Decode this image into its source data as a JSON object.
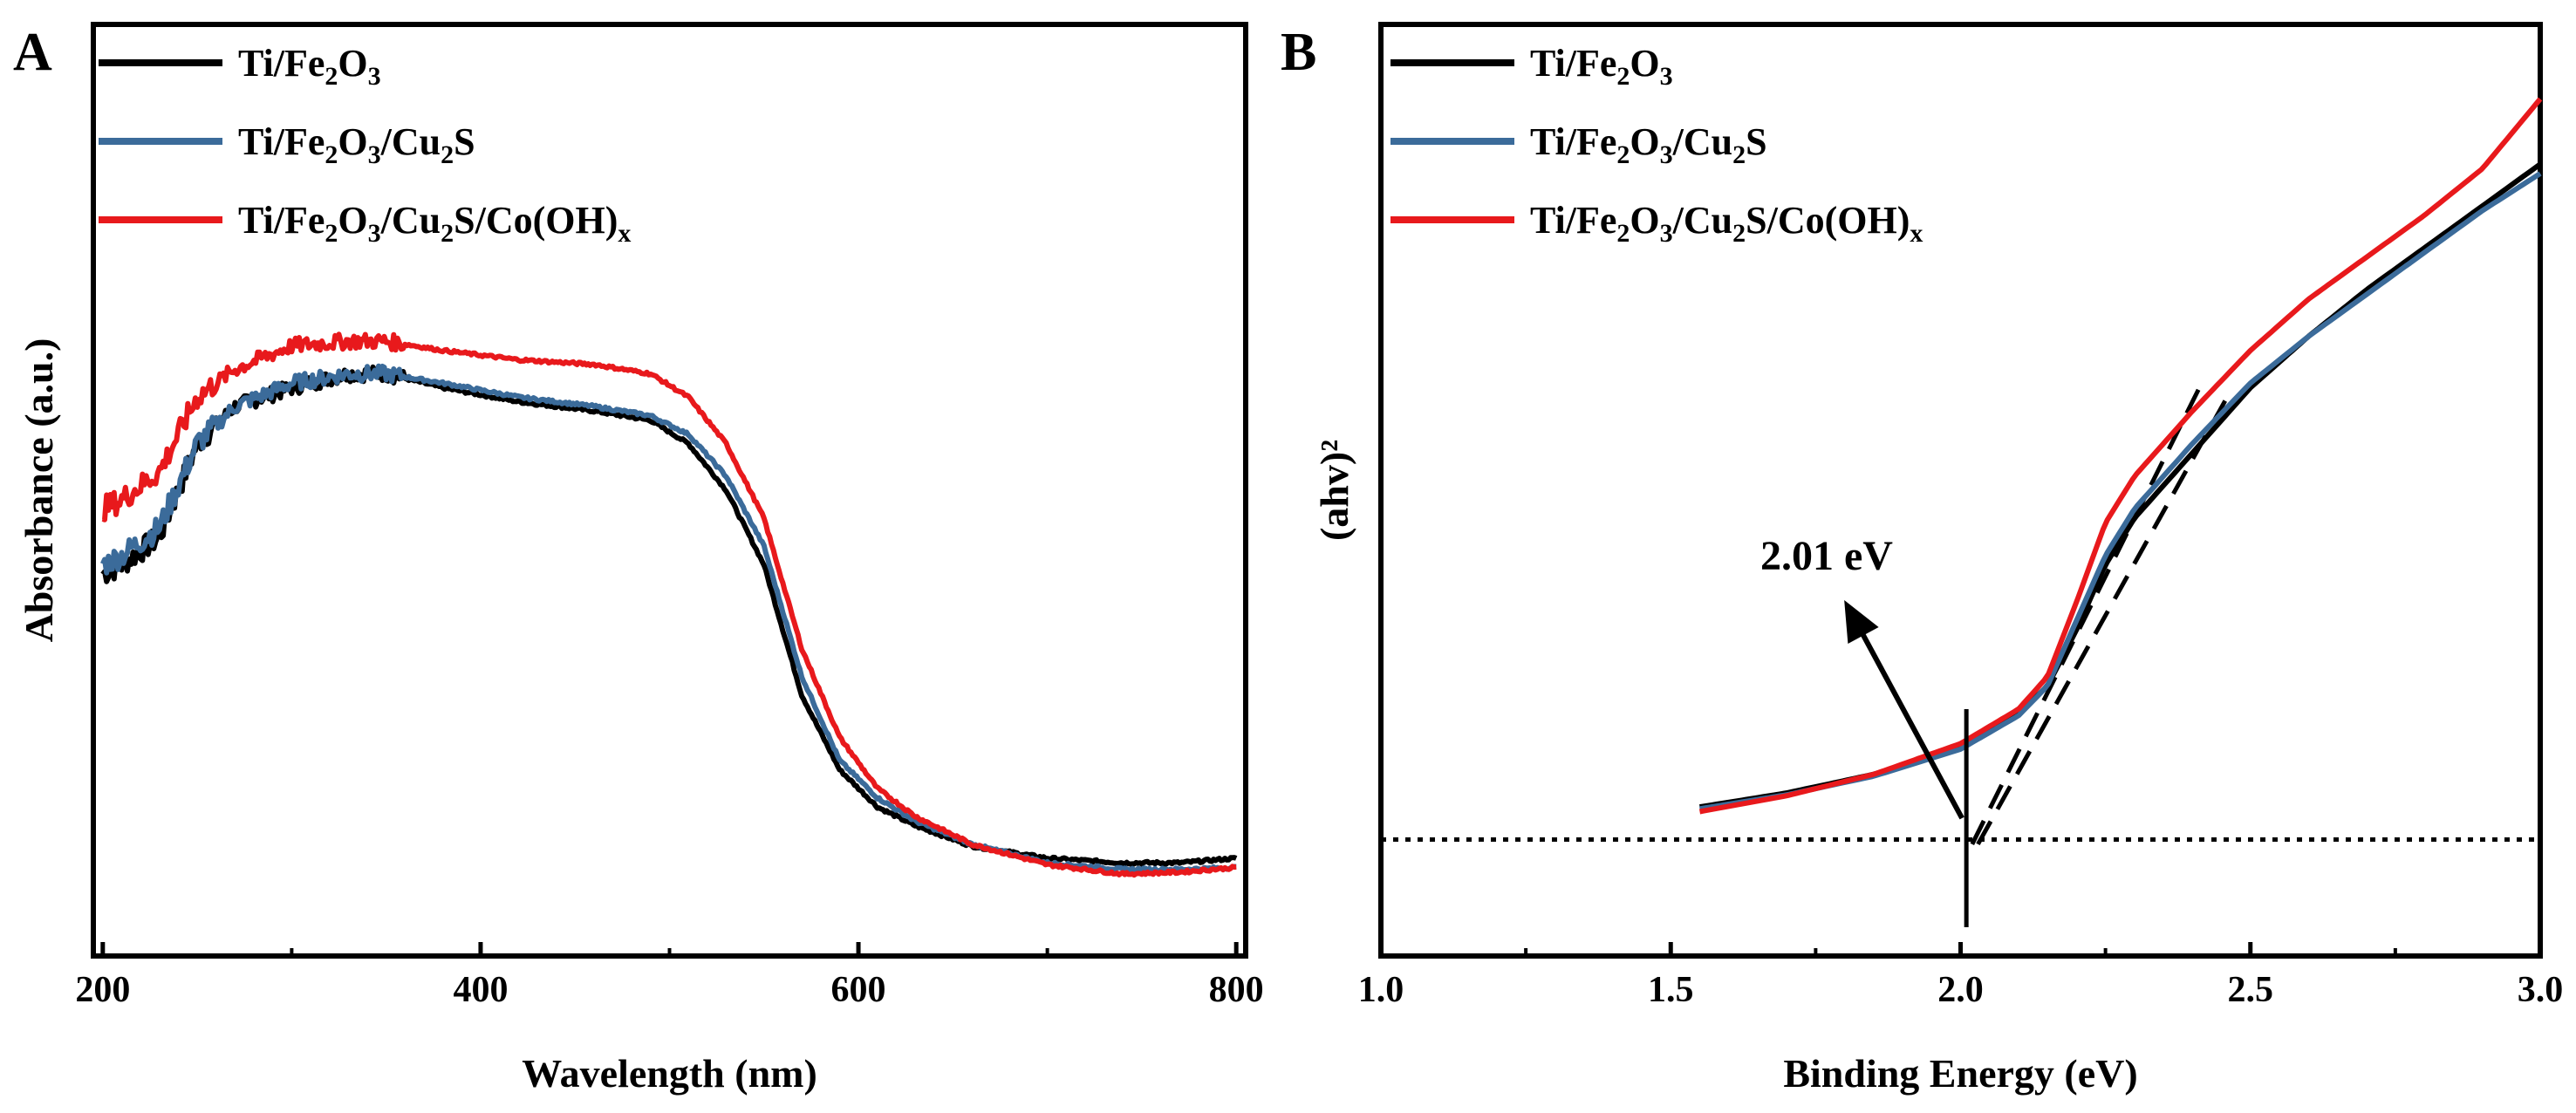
{
  "chart_data": [
    {
      "panel": "A",
      "type": "line",
      "xlabel": "Wavelength (nm)",
      "ylabel": "Absorbance (a.u.)",
      "xlim": [
        195,
        805
      ],
      "ylim": [
        0,
        1
      ],
      "x_ticks": [
        200,
        400,
        600,
        800
      ],
      "y_ticks": [],
      "legend_position": "top-left",
      "series": [
        {
          "name": "Ti/Fe2O3",
          "legend": {
            "base": "Ti/Fe",
            "parts": [
              {
                "t": "2",
                "sub": true
              },
              {
                "t": "O"
              },
              {
                "t": "3",
                "sub": true
              }
            ]
          },
          "color": "#000000",
          "noise": 0.012,
          "x": [
            200,
            210,
            230,
            250,
            270,
            300,
            330,
            350,
            380,
            420,
            460,
            490,
            510,
            530,
            550,
            570,
            590,
            610,
            630,
            660,
            700,
            740,
            770,
            800
          ],
          "y": [
            0.41,
            0.42,
            0.45,
            0.55,
            0.59,
            0.61,
            0.625,
            0.625,
            0.61,
            0.595,
            0.585,
            0.575,
            0.55,
            0.5,
            0.42,
            0.28,
            0.2,
            0.16,
            0.14,
            0.118,
            0.105,
            0.1,
            0.1,
            0.105
          ]
        },
        {
          "name": "Ti/Fe2O3/Cu2S",
          "legend": {
            "base": "Ti/Fe",
            "parts": [
              {
                "t": "2",
                "sub": true
              },
              {
                "t": "O"
              },
              {
                "t": "3",
                "sub": true
              },
              {
                "t": "/Cu"
              },
              {
                "t": "2",
                "sub": true
              },
              {
                "t": "S"
              }
            ]
          },
          "color": "#3b6b9a",
          "noise": 0.012,
          "x": [
            200,
            210,
            230,
            250,
            270,
            300,
            330,
            350,
            380,
            420,
            460,
            490,
            510,
            530,
            550,
            570,
            590,
            610,
            630,
            660,
            700,
            740,
            770,
            800
          ],
          "y": [
            0.42,
            0.43,
            0.46,
            0.55,
            0.59,
            0.615,
            0.625,
            0.625,
            0.615,
            0.6,
            0.59,
            0.58,
            0.56,
            0.515,
            0.44,
            0.3,
            0.21,
            0.17,
            0.145,
            0.12,
            0.1,
            0.093,
            0.093,
            0.095
          ]
        },
        {
          "name": "Ti/Fe2O3/Cu2S/Co(OH)x",
          "legend": {
            "base": "Ti/Fe",
            "parts": [
              {
                "t": "2",
                "sub": true
              },
              {
                "t": "O"
              },
              {
                "t": "3",
                "sub": true
              },
              {
                "t": "/Cu"
              },
              {
                "t": "2",
                "sub": true
              },
              {
                "t": "S/Co(OH)"
              },
              {
                "t": "x",
                "sub": true
              }
            ]
          },
          "color": "#e8191c",
          "noise": 0.012,
          "x": [
            200,
            210,
            230,
            250,
            270,
            300,
            330,
            350,
            380,
            420,
            460,
            490,
            510,
            530,
            550,
            570,
            590,
            610,
            630,
            660,
            700,
            740,
            770,
            800
          ],
          "y": [
            0.48,
            0.49,
            0.52,
            0.6,
            0.63,
            0.655,
            0.66,
            0.66,
            0.65,
            0.64,
            0.635,
            0.625,
            0.6,
            0.55,
            0.47,
            0.33,
            0.235,
            0.18,
            0.15,
            0.12,
            0.098,
            0.088,
            0.09,
            0.095
          ]
        }
      ]
    },
    {
      "panel": "B",
      "type": "line",
      "xlabel": "Binding Energy (eV)",
      "ylabel": "(ahv)²",
      "xlim": [
        1.0,
        3.0
      ],
      "ylim": [
        0,
        1
      ],
      "x_ticks": [
        1.0,
        1.5,
        2.0,
        2.5,
        3.0
      ],
      "x_tick_labels": [
        "1.0",
        "1.5",
        "2.0",
        "2.5",
        "3.0"
      ],
      "y_ticks": [],
      "legend_position": "top-left",
      "baseline_y": 0.125,
      "annotation": {
        "text": "2.01 eV",
        "at_x": 2.01
      },
      "tangent_lines": [
        {
          "x": [
            2.02,
            2.42
          ],
          "y": [
            0.12,
            0.62
          ]
        },
        {
          "x": [
            2.03,
            2.46
          ],
          "y": [
            0.12,
            0.6
          ]
        }
      ],
      "series": [
        {
          "name": "Ti/Fe2O3",
          "legend": {
            "base": "Ti/Fe",
            "parts": [
              {
                "t": "2",
                "sub": true
              },
              {
                "t": "O"
              },
              {
                "t": "3",
                "sub": true
              }
            ]
          },
          "color": "#000000",
          "x": [
            1.55,
            1.7,
            1.85,
            2.0,
            2.1,
            2.15,
            2.2,
            2.25,
            2.3,
            2.4,
            2.5,
            2.6,
            2.7,
            2.8,
            2.9,
            3.0
          ],
          "y": [
            0.16,
            0.175,
            0.195,
            0.225,
            0.26,
            0.29,
            0.35,
            0.42,
            0.47,
            0.54,
            0.61,
            0.665,
            0.715,
            0.76,
            0.805,
            0.85
          ]
        },
        {
          "name": "Ti/Fe2O3/Cu2S",
          "legend": {
            "base": "Ti/Fe",
            "parts": [
              {
                "t": "2",
                "sub": true
              },
              {
                "t": "O"
              },
              {
                "t": "3",
                "sub": true
              },
              {
                "t": "/Cu"
              },
              {
                "t": "2",
                "sub": true
              },
              {
                "t": "S"
              }
            ]
          },
          "color": "#3b6b9a",
          "x": [
            1.55,
            1.7,
            1.85,
            2.0,
            2.1,
            2.15,
            2.2,
            2.25,
            2.3,
            2.4,
            2.5,
            2.6,
            2.7,
            2.8,
            2.9,
            3.0
          ],
          "y": [
            0.158,
            0.173,
            0.193,
            0.222,
            0.258,
            0.29,
            0.36,
            0.43,
            0.48,
            0.55,
            0.615,
            0.665,
            0.71,
            0.755,
            0.8,
            0.84
          ]
        },
        {
          "name": "Ti/Fe2O3/Cu2S/Co(OH)x",
          "legend": {
            "base": "Ti/Fe",
            "parts": [
              {
                "t": "2",
                "sub": true
              },
              {
                "t": "O"
              },
              {
                "t": "3",
                "sub": true
              },
              {
                "t": "/Cu"
              },
              {
                "t": "2",
                "sub": true
              },
              {
                "t": "S/Co(OH)"
              },
              {
                "t": "x",
                "sub": true
              }
            ]
          },
          "color": "#e8191c",
          "x": [
            1.55,
            1.7,
            1.85,
            2.0,
            2.1,
            2.15,
            2.2,
            2.25,
            2.3,
            2.4,
            2.5,
            2.6,
            2.7,
            2.8,
            2.9,
            3.0
          ],
          "y": [
            0.155,
            0.172,
            0.195,
            0.228,
            0.265,
            0.3,
            0.38,
            0.465,
            0.515,
            0.585,
            0.65,
            0.705,
            0.75,
            0.795,
            0.845,
            0.92
          ]
        }
      ]
    }
  ]
}
